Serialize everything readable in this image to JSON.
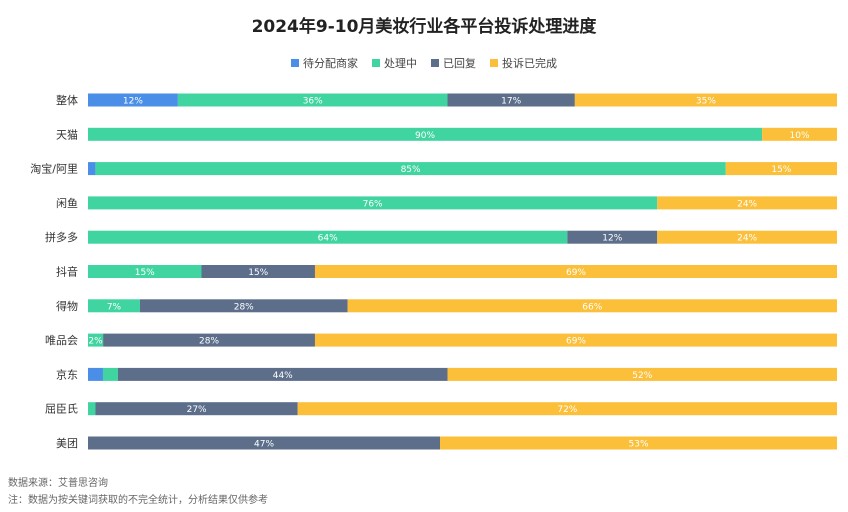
{
  "chart_data": {
    "type": "bar",
    "orientation": "horizontal-stacked-100",
    "title": "2024年9-10月美妆行业各平台投诉处理进度",
    "categories": [
      "整体",
      "天猫",
      "淘宝/阿里",
      "闲鱼",
      "拼多多",
      "抖音",
      "得物",
      "唯品会",
      "京东",
      "屈臣氏",
      "美团"
    ],
    "series": [
      {
        "name": "待分配商家",
        "color": "#4a8ee8",
        "values": [
          12,
          0,
          1,
          0,
          0,
          0,
          0,
          0,
          2,
          0,
          0
        ],
        "labels": [
          "12%",
          "",
          "",
          "",
          "",
          "",
          "",
          "",
          "",
          "",
          ""
        ]
      },
      {
        "name": "处理中",
        "color": "#40d4a0",
        "values": [
          36,
          90,
          85,
          76,
          64,
          15,
          7,
          2,
          2,
          1,
          0
        ],
        "labels": [
          "36%",
          "90%",
          "85%",
          "76%",
          "64%",
          "15%",
          "7%",
          "2%",
          "",
          "",
          ""
        ]
      },
      {
        "name": "已回复",
        "color": "#5c6e8a",
        "values": [
          17,
          0,
          0,
          0,
          12,
          15,
          28,
          28,
          44,
          27,
          47
        ],
        "labels": [
          "17%",
          "",
          "",
          "",
          "12%",
          "15%",
          "28%",
          "28%",
          "44%",
          "27%",
          "47%"
        ]
      },
      {
        "name": "投诉已完成",
        "color": "#fbbf3a",
        "values": [
          35,
          10,
          15,
          24,
          24,
          69,
          66,
          69,
          52,
          72,
          53
        ],
        "labels": [
          "35%",
          "10%",
          "15%",
          "24%",
          "24%",
          "69%",
          "66%",
          "69%",
          "52%",
          "72%",
          "53%"
        ]
      }
    ],
    "xlim": [
      0,
      100
    ]
  },
  "footer": {
    "source": "数据来源：艾普思咨询",
    "note": "注：数据为按关键词获取的不完全统计，分析结果仅供参考"
  }
}
